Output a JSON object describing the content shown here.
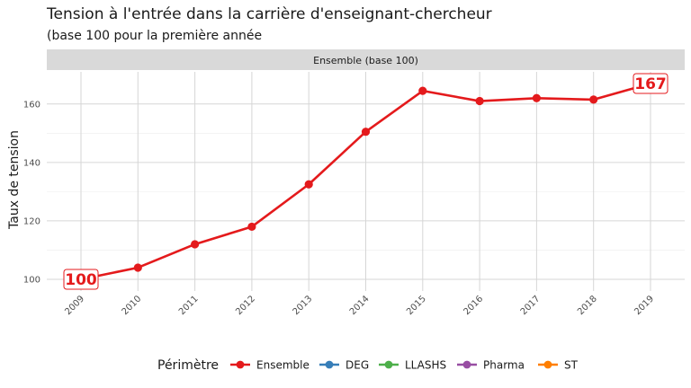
{
  "chart_data": {
    "type": "line",
    "title": "Tension à l'entrée dans la carrière d'enseignant-chercheur",
    "subtitle": "(base 100 pour la première année",
    "facet_label": "Ensemble (base 100)",
    "xlabel": "",
    "ylabel": "Taux de tension",
    "x": [
      "2009",
      "2010",
      "2011",
      "2012",
      "2013",
      "2014",
      "2015",
      "2016",
      "2017",
      "2018",
      "2019"
    ],
    "ylim": [
      96,
      171
    ],
    "yticks": [
      100,
      120,
      140,
      160
    ],
    "grid": true,
    "series": [
      {
        "name": "Ensemble",
        "color": "#e41a1c",
        "values": [
          100,
          104,
          112,
          118,
          132.5,
          150.5,
          164.5,
          161,
          162,
          161.5,
          167
        ]
      }
    ],
    "annotations": [
      {
        "x": "2009",
        "y": 100,
        "text": "100"
      },
      {
        "x": "2019",
        "y": 167,
        "text": "167"
      }
    ],
    "legend": {
      "position": "bottom",
      "title": "Périmètre",
      "entries": [
        {
          "name": "Ensemble",
          "color": "#e41a1c"
        },
        {
          "name": "DEG",
          "color": "#377eb8"
        },
        {
          "name": "LLASHS",
          "color": "#4daf4a"
        },
        {
          "name": "Pharma",
          "color": "#984ea3"
        },
        {
          "name": "ST",
          "color": "#ff7f00"
        }
      ]
    }
  }
}
